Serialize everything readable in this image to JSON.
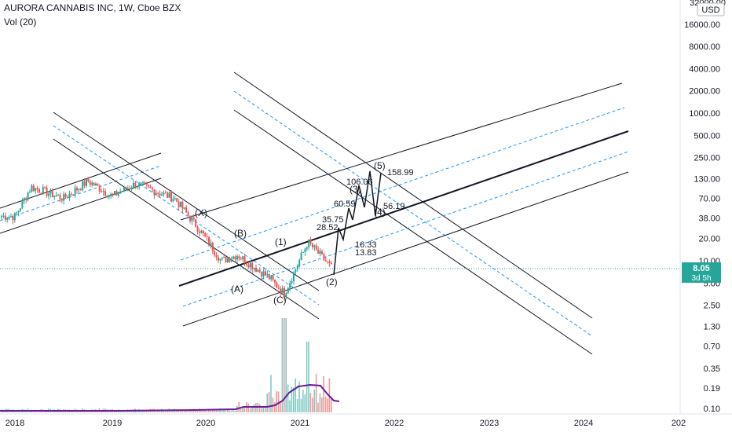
{
  "header": {
    "symbol_line": "AURORA CANNABIS INC, 1W, Cboe BZX",
    "volume_line": "Vol (20)"
  },
  "price_axis": {
    "currency": "USD",
    "top_label": "32000.00",
    "ticks": [
      "16000.00",
      "8000.00",
      "4000.00",
      "2000.00",
      "1000.00",
      "500.00",
      "250.00",
      "130.00",
      "70.00",
      "38.00",
      "20.00",
      "10.00",
      "5.00",
      "2.50",
      "1.30",
      "0.70",
      "0.35",
      "0.19",
      "0.10"
    ],
    "last_price": "8.05",
    "countdown": "3d 5h"
  },
  "time_axis": {
    "labels": [
      "2018",
      "2019",
      "2020",
      "2021",
      "2022",
      "2023",
      "2024",
      "202"
    ]
  },
  "wave_labels": [
    "(X)",
    "(A)",
    "(B)",
    "(C)",
    "(1)",
    "(2)",
    "(3)",
    "(4)",
    "(5)"
  ],
  "projection_values": [
    "28.52",
    "35.75",
    "60.59",
    "106.06",
    "56.19",
    "158.99",
    "16.33",
    "13.83"
  ],
  "colors": {
    "up": "#26a69a",
    "down": "#ef5350",
    "channel": "#131722",
    "midline": "#2196f3",
    "volume_ma": "#6a1b9a",
    "price_badge": "#26a69a"
  },
  "chart_data": {
    "type": "candlestick",
    "timeframe": "1W",
    "y_scale": "log",
    "x_range": [
      "2018",
      "2025"
    ],
    "y_range": [
      0.1,
      32000
    ],
    "price_key_points": [
      {
        "x": "2018-01",
        "y": 40
      },
      {
        "x": "2018-03",
        "y": 100
      },
      {
        "x": "2018-07",
        "y": 70
      },
      {
        "x": "2018-10",
        "y": 120
      },
      {
        "x": "2019-01",
        "y": 75
      },
      {
        "x": "2019-04",
        "y": 110
      },
      {
        "x": "2019-09",
        "y": 70
      },
      {
        "x": "2019-12",
        "y": 28
      },
      {
        "x": "2020-03",
        "y": 10
      },
      {
        "x": "2020-05",
        "y": 12
      },
      {
        "x": "2020-09",
        "y": 6
      },
      {
        "x": "2020-11",
        "y": 3.6
      },
      {
        "x": "2021-02",
        "y": 18
      },
      {
        "x": "2021-05",
        "y": 8.05
      }
    ],
    "volume_spikes": [
      {
        "x": "2020-11",
        "value": "peak"
      },
      {
        "x": "2021-02",
        "value": "high"
      }
    ]
  }
}
